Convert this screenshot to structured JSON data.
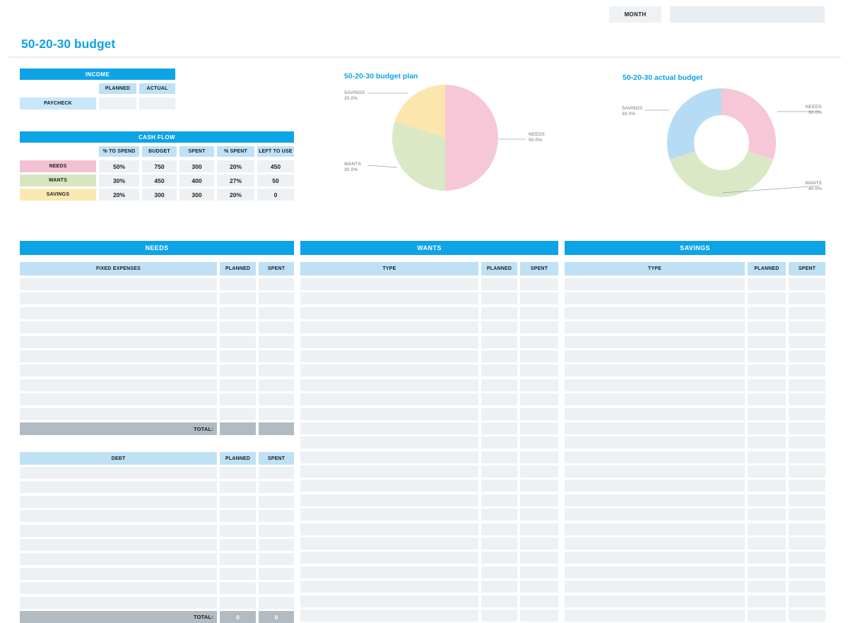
{
  "toolbar": {
    "month_label": "MONTH",
    "month_value": ""
  },
  "page": {
    "title": "50-20-30 budget"
  },
  "colors": {
    "accent": "#0da3e7",
    "header_light": "#bfe1f6",
    "row_gray": "#edf1f4",
    "total_gray": "#b2bbc2",
    "needs_pink": "#f3c1d3",
    "wants_green": "#d8e6c0",
    "savings_yellow": "#fce8b2"
  },
  "income": {
    "header": "INCOME",
    "columns": [
      "PLANNED",
      "ACTUAL"
    ],
    "rows": [
      {
        "label": "PAYCHECK",
        "planned": "",
        "actual": ""
      }
    ]
  },
  "cash_flow": {
    "header": "CASH FLOW",
    "columns": [
      "% TO SPEND",
      "BUDGET",
      "SPENT",
      "% SPENT",
      "LEFT TO USE"
    ],
    "rows": [
      {
        "label": "NEEDS",
        "color": "#f3c1d3",
        "pct_to_spend": "50%",
        "budget": "750",
        "spent": "300",
        "pct_spent": "20%",
        "left_to_use": "450"
      },
      {
        "label": "WANTS",
        "color": "#d8e6c0",
        "pct_to_spend": "30%",
        "budget": "450",
        "spent": "400",
        "pct_spent": "27%",
        "left_to_use": "50"
      },
      {
        "label": "SAVINGS",
        "color": "#fce8b2",
        "pct_to_spend": "20%",
        "budget": "300",
        "spent": "300",
        "pct_spent": "20%",
        "left_to_use": "0"
      }
    ]
  },
  "chart_data": [
    {
      "type": "pie",
      "title": "50-20-30 budget plan",
      "categories": [
        "NEEDS",
        "WANTS",
        "SAVINGS"
      ],
      "values": [
        50.0,
        30.0,
        20.0
      ],
      "colors": [
        "#f6c7d7",
        "#dbe8c5",
        "#fbe6ae"
      ],
      "legend_position": "none",
      "label_format": "name + percent, leader lines"
    },
    {
      "type": "pie",
      "subtype": "donut",
      "title": "50-20-30 actual budget",
      "categories": [
        "NEEDS",
        "WANTS",
        "SAVINGS"
      ],
      "values": [
        30.0,
        40.0,
        30.0
      ],
      "colors": [
        "#f6c7d7",
        "#dbe8c5",
        "#b6dcf5"
      ],
      "legend_position": "none",
      "label_format": "name + percent, leader lines"
    }
  ],
  "needs": {
    "header": "NEEDS",
    "tables": [
      {
        "label_col": "FIXED EXPENSES",
        "columns": [
          "PLANNED",
          "SPENT"
        ],
        "row_count": 10,
        "total": {
          "label": "TOTAL:",
          "planned": "",
          "spent": ""
        }
      },
      {
        "label_col": "DEBT",
        "columns": [
          "PLANNED",
          "SPENT"
        ],
        "row_count": 10,
        "total": {
          "label": "TOTAL:",
          "planned": "0",
          "spent": "0"
        }
      }
    ]
  },
  "wants": {
    "header": "WANTS",
    "label_col": "TYPE",
    "columns": [
      "PLANNED",
      "SPENT"
    ],
    "row_count": 24
  },
  "savings": {
    "header": "SAVINGS",
    "label_col": "TYPE",
    "columns": [
      "PLANNED",
      "SPENT"
    ],
    "row_count": 24
  }
}
